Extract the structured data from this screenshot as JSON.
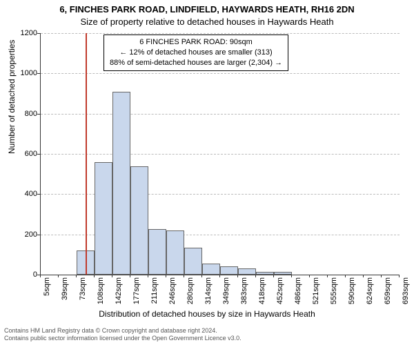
{
  "chart": {
    "type": "histogram",
    "title_main": "6, FINCHES PARK ROAD, LINDFIELD, HAYWARDS HEATH, RH16 2DN",
    "title_sub": "Size of property relative to detached houses in Haywards Heath",
    "ylabel": "Number of detached properties",
    "xlabel": "Distribution of detached houses by size in Haywards Heath",
    "y_ticks": [
      0,
      200,
      400,
      600,
      800,
      1000,
      1200
    ],
    "y_max": 1200,
    "x_tick_labels": [
      "5sqm",
      "39sqm",
      "73sqm",
      "108sqm",
      "142sqm",
      "177sqm",
      "211sqm",
      "246sqm",
      "280sqm",
      "314sqm",
      "349sqm",
      "383sqm",
      "418sqm",
      "452sqm",
      "486sqm",
      "521sqm",
      "555sqm",
      "590sqm",
      "624sqm",
      "659sqm",
      "693sqm"
    ],
    "bars": [
      0,
      0,
      120,
      560,
      910,
      540,
      225,
      220,
      135,
      55,
      40,
      30,
      15,
      15,
      0,
      0,
      0,
      0,
      0,
      0
    ],
    "bar_color": "#c9d7ec",
    "bar_border": "#666666",
    "grid_color": "#bbbbbb",
    "marker_line_x_index": 2.5,
    "marker_line_color": "#c0392b",
    "background_color": "#ffffff"
  },
  "info_box": {
    "line1": "6 FINCHES PARK ROAD: 90sqm",
    "line2": "← 12% of detached houses are smaller (313)",
    "line3": "88% of semi-detached houses are larger (2,304) →"
  },
  "footer": {
    "line1": "Contains HM Land Registry data © Crown copyright and database right 2024.",
    "line2": "Contains public sector information licensed under the Open Government Licence v3.0."
  }
}
